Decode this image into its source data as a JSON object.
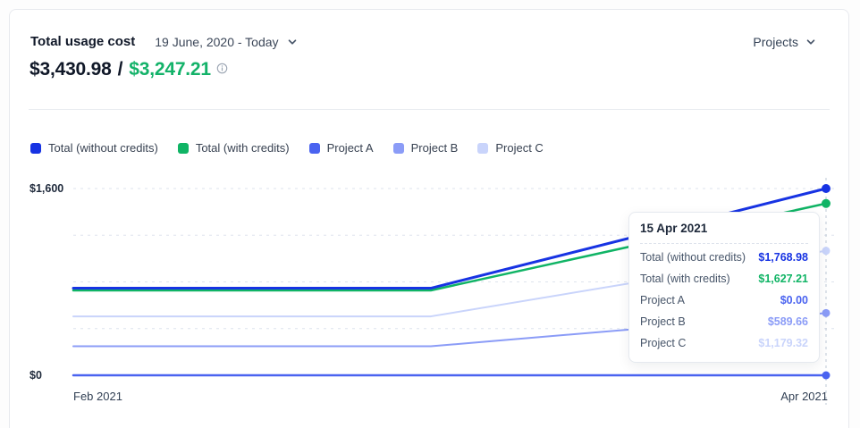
{
  "header": {
    "title": "Total usage cost",
    "date_range": "19 June, 2020 - Today",
    "projects_label": "Projects",
    "amount_without_credits": "$3,430.98",
    "amount_separator": "/",
    "amount_with_credits": "$3,247.21"
  },
  "colors": {
    "total_without_credits": "#1733e3",
    "total_with_credits": "#10b465",
    "project_a": "#4a63f0",
    "project_b": "#8b9cf7",
    "project_c": "#c9d4fb",
    "grid": "#dde3ed",
    "cursor": "#c9d1dc",
    "green_amount": "#13b269"
  },
  "legend": {
    "items": [
      {
        "label": "Total (without credits)",
        "color": "#1733e3"
      },
      {
        "label": "Total (with credits)",
        "color": "#10b465"
      },
      {
        "label": "Project A",
        "color": "#4a63f0"
      },
      {
        "label": "Project B",
        "color": "#8b9cf7"
      },
      {
        "label": "Project C",
        "color": "#c9d4fb"
      }
    ]
  },
  "chart_data": {
    "type": "line",
    "title": "Total usage cost over time",
    "x_tick_labels": [
      "Feb 2021",
      "Apr 2021"
    ],
    "y_tick_labels": {
      "top": "$1,600",
      "bottom": "$0"
    },
    "y_axis_top_value": 1768.98,
    "ylim": [
      0,
      1768.98
    ],
    "grid": "horizontal-dashed",
    "legend_position": "top",
    "x": [
      0,
      0.475,
      1
    ],
    "series": [
      {
        "name": "Total (without credits)",
        "color": "#1733e3",
        "stroke_width": 3,
        "dot_r": 5,
        "values": [
          825,
          825,
          1768.98
        ]
      },
      {
        "name": "Total (with credits)",
        "color": "#10b465",
        "stroke_width": 2.5,
        "dot_r": 5,
        "values": [
          804,
          804,
          1627.21
        ]
      },
      {
        "name": "Project A",
        "color": "#4a63f0",
        "stroke_width": 2.5,
        "dot_r": 4.5,
        "values": [
          0,
          0,
          0
        ]
      },
      {
        "name": "Project B",
        "color": "#8b9cf7",
        "stroke_width": 2,
        "dot_r": 4.5,
        "values": [
          275,
          275,
          589.66
        ]
      },
      {
        "name": "Project C",
        "color": "#c9d4fb",
        "stroke_width": 2,
        "dot_r": 4.5,
        "values": [
          558,
          558,
          1179.32
        ]
      }
    ],
    "hovered_point": {
      "date": "15 Apr 2021",
      "x": 1
    }
  },
  "tooltip": {
    "title": "15 Apr 2021",
    "rows": [
      {
        "label": "Total (without credits)",
        "value": "$1,768.98",
        "color": "#1733e3"
      },
      {
        "label": "Total (with credits)",
        "value": "$1,627.21",
        "color": "#10b465"
      },
      {
        "label": "Project A",
        "value": "$0.00",
        "color": "#4a63f0"
      },
      {
        "label": "Project B",
        "value": "$589.66",
        "color": "#8b9cf7"
      },
      {
        "label": "Project C",
        "value": "$1,179.32",
        "color": "#c9d4fb"
      }
    ]
  }
}
